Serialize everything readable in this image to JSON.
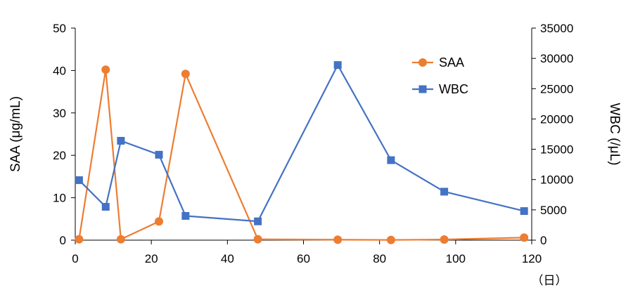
{
  "chart_data": {
    "type": "line",
    "x_unit_label": "（日）",
    "xlim": [
      0,
      120
    ],
    "x_ticks": [
      0,
      20,
      40,
      60,
      80,
      100,
      120
    ],
    "y_left": {
      "label": "SAA (μg/mL)",
      "lim": [
        0,
        50
      ],
      "ticks": [
        0,
        10,
        20,
        30,
        40,
        50
      ]
    },
    "y_right": {
      "label": "WBC (/μL)",
      "lim": [
        0,
        35000
      ],
      "ticks": [
        0,
        5000,
        10000,
        15000,
        20000,
        25000,
        30000,
        35000
      ]
    },
    "grid": false,
    "legend_position": "top-right",
    "series": [
      {
        "name": "SAA",
        "axis": "left",
        "color": "#ED7D31",
        "marker": "circle",
        "points": [
          [
            1,
            0.2
          ],
          [
            8,
            40.2
          ],
          [
            12,
            0.2
          ],
          [
            22,
            4.4
          ],
          [
            29,
            39.2
          ],
          [
            48,
            0.2
          ],
          [
            69,
            0.1
          ],
          [
            83,
            0.05
          ],
          [
            97,
            0.15
          ],
          [
            118,
            0.6
          ]
        ]
      },
      {
        "name": "WBC",
        "axis": "right",
        "color": "#4472C4",
        "marker": "square",
        "points": [
          [
            1,
            9900
          ],
          [
            8,
            5500
          ],
          [
            12,
            16400
          ],
          [
            22,
            14100
          ],
          [
            29,
            4000
          ],
          [
            48,
            3100
          ],
          [
            69,
            28900
          ],
          [
            83,
            13200
          ],
          [
            97,
            8000
          ],
          [
            118,
            4800
          ]
        ]
      }
    ]
  }
}
